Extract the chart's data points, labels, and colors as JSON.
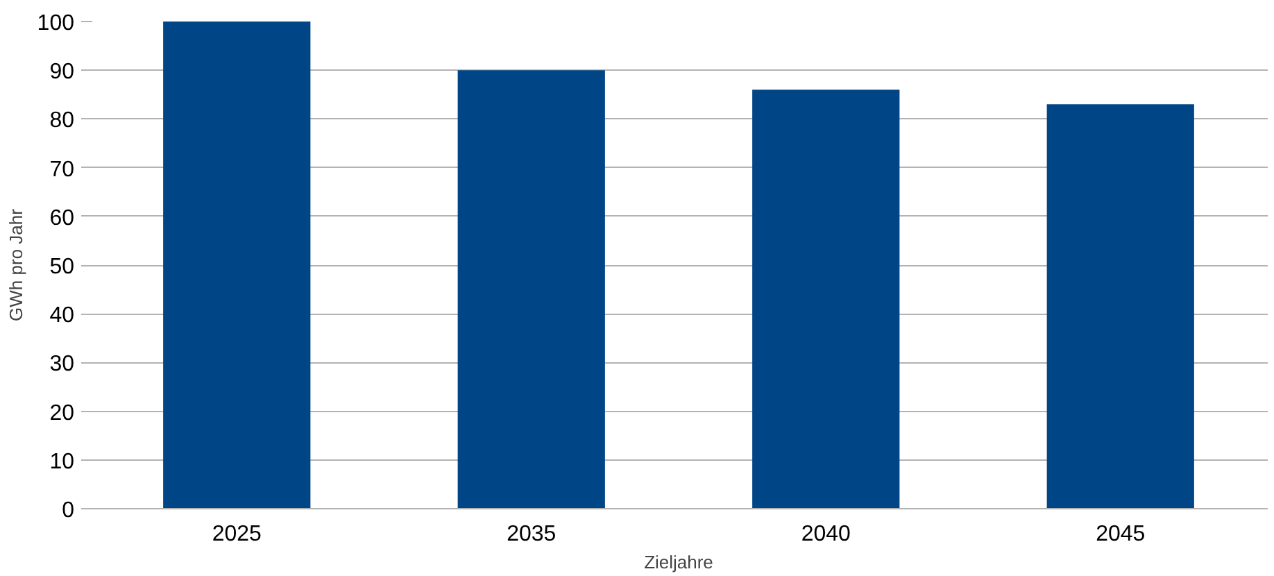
{
  "chart_data": {
    "type": "bar",
    "xlabel": "Zieljahre",
    "ylabel": "GWh pro Jahr",
    "categories": [
      "2025",
      "2035",
      "2040",
      "2045"
    ],
    "values": [
      100,
      90,
      86,
      83
    ],
    "color": "#004586",
    "ylim": [
      0,
      100
    ],
    "yticks": [
      0,
      10,
      20,
      30,
      40,
      50,
      60,
      70,
      80,
      90,
      100
    ],
    "grid": "y"
  }
}
